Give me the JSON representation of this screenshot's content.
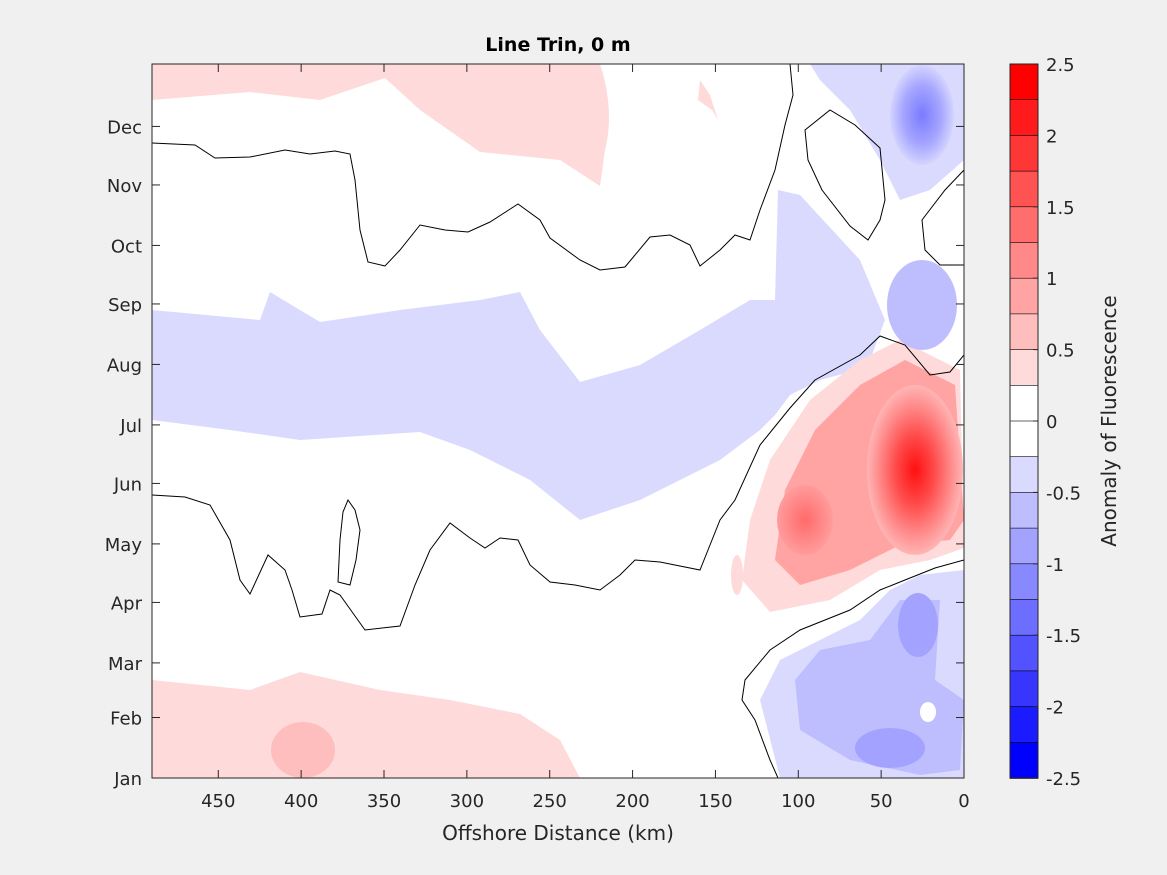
{
  "chart_data": {
    "type": "heatmap",
    "title": "Line Trin, 0 m",
    "xlabel": "Offshore Distance (km)",
    "ylabel": "",
    "xlim": [
      490,
      0
    ],
    "x_reversed": true,
    "x_ticks": [
      450,
      400,
      350,
      300,
      250,
      200,
      150,
      100,
      50,
      0
    ],
    "y_ticks": [
      "Jan",
      "Feb",
      "Mar",
      "Apr",
      "May",
      "Jun",
      "Jul",
      "Aug",
      "Sep",
      "Oct",
      "Nov",
      "Dec"
    ],
    "grid": false,
    "colorbar": {
      "label": "Anomaly of Fluorescence",
      "clim": [
        -2.5,
        2.5
      ],
      "ticks": [
        "2.5",
        "2",
        "1.5",
        "1",
        "0.5",
        "0",
        "-0.5",
        "-1",
        "-1.5",
        "-2",
        "-2.5"
      ],
      "colors": [
        "#ff0000",
        "#ff1b1b",
        "#ff3636",
        "#ff5252",
        "#ff6d6d",
        "#ff8888",
        "#ffa3a3",
        "#ffbebe",
        "#ffdada",
        "#ffffff",
        "#ffffff",
        "#dadaff",
        "#bebeff",
        "#a3a3ff",
        "#8888ff",
        "#6d6dff",
        "#5252ff",
        "#3636ff",
        "#1b1bff",
        "#0000ff"
      ]
    },
    "colors": {
      "positive": "#ff0000",
      "negative": "#0000ff",
      "zero_contour": "#000000",
      "background": "#f0f0f0"
    }
  }
}
